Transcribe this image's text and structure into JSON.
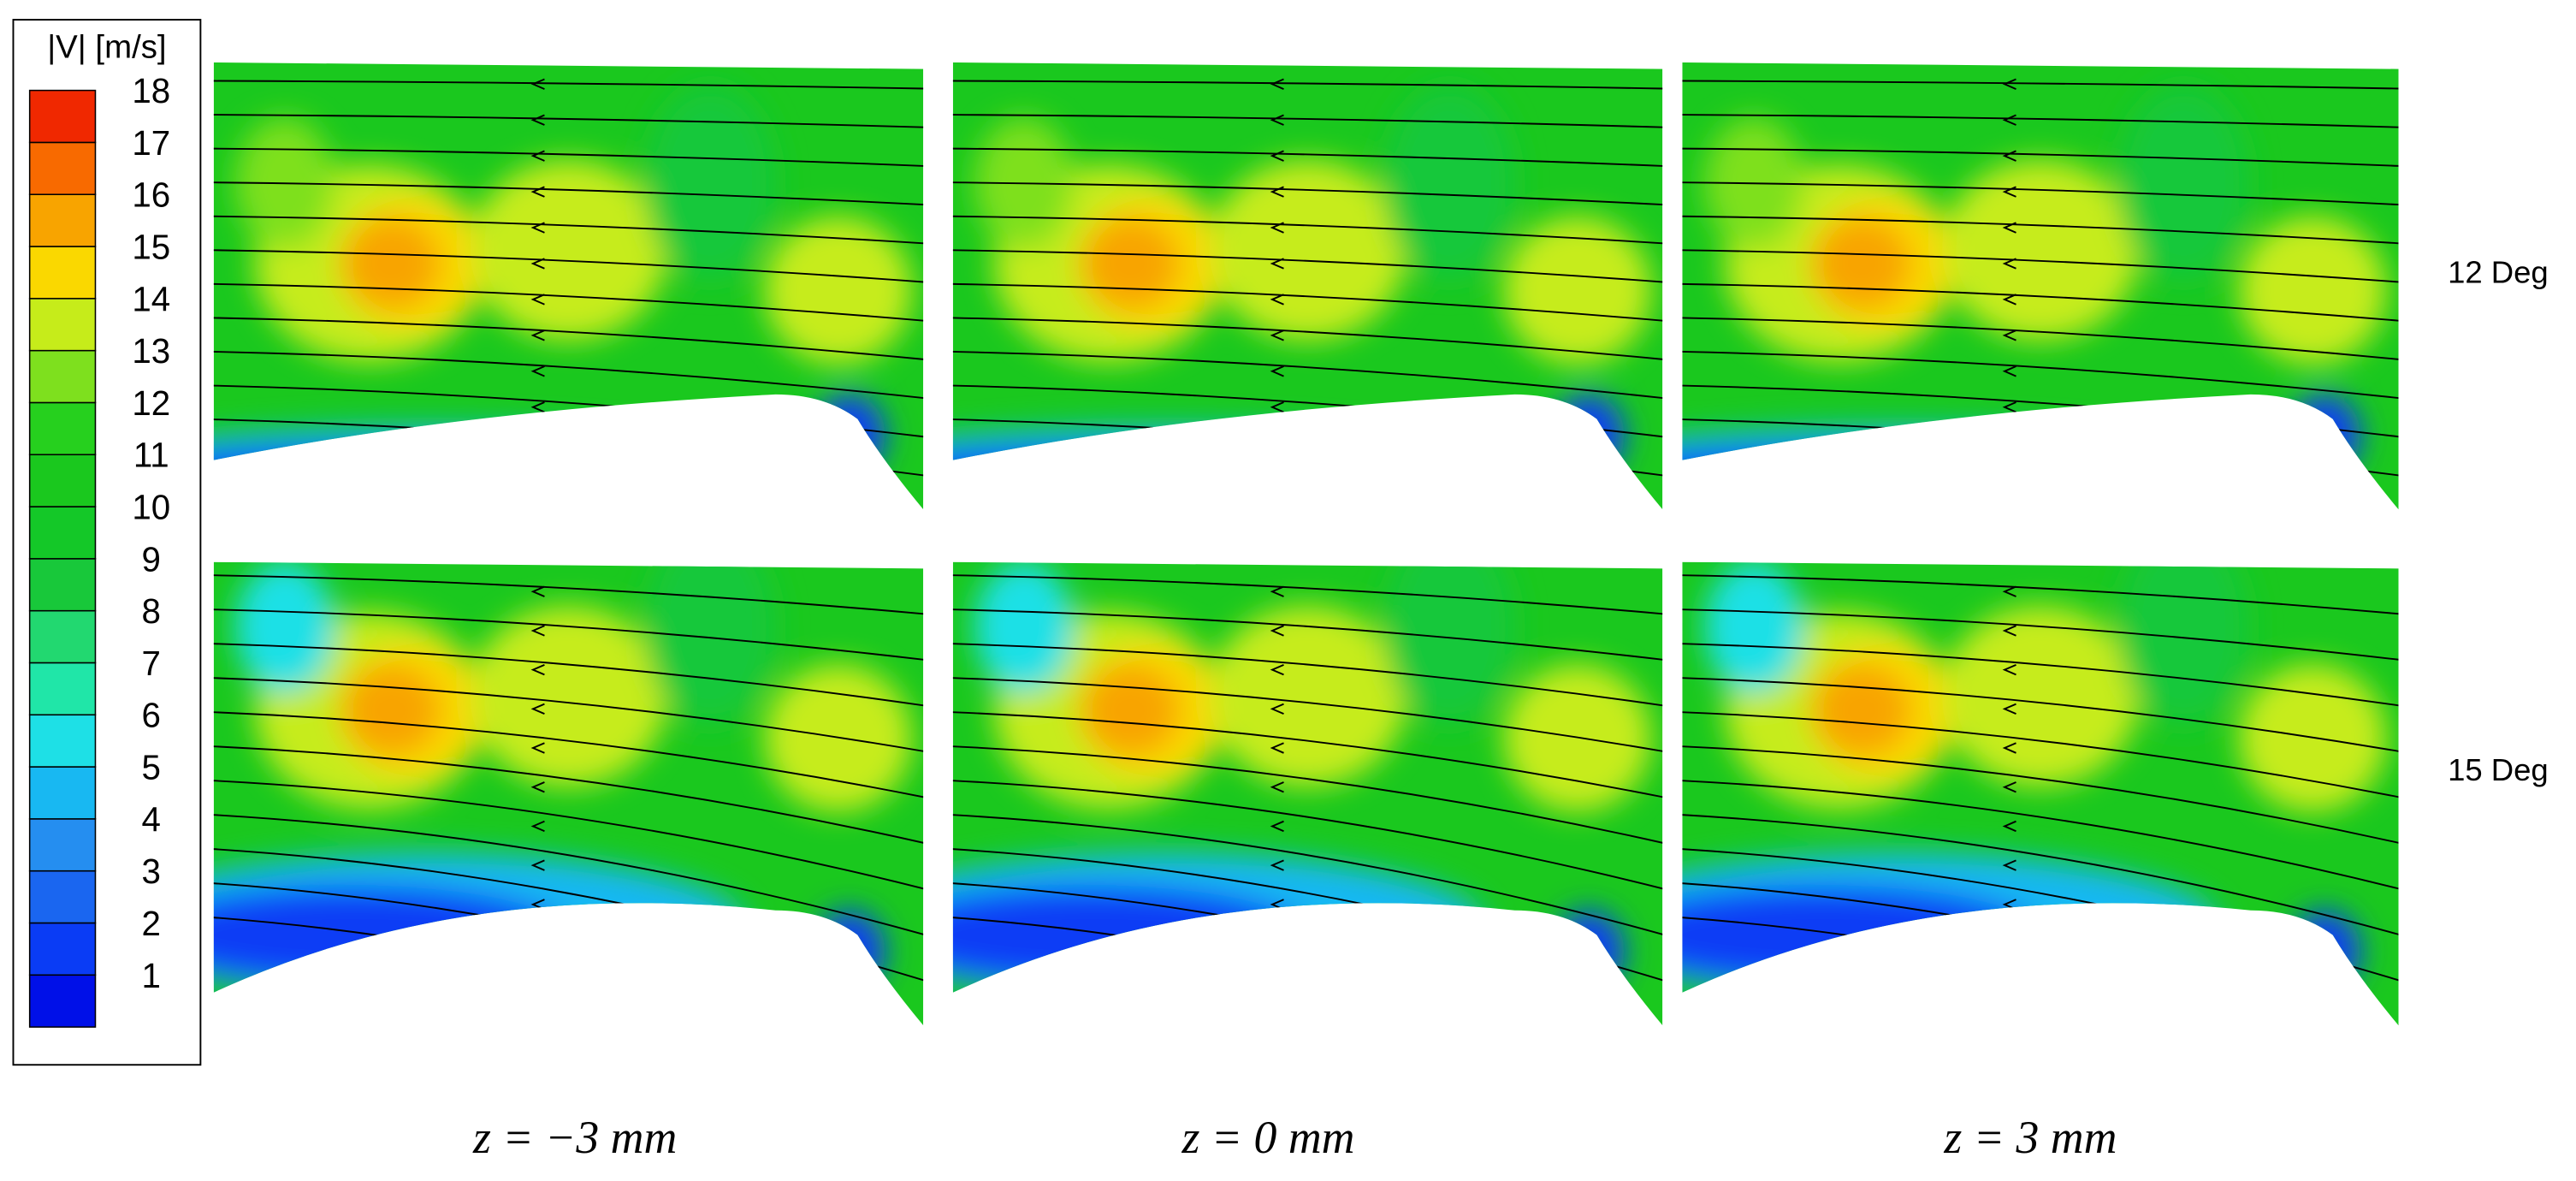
{
  "colorbar": {
    "title": "|V| [m/s]",
    "ticks": [
      1,
      2,
      3,
      4,
      5,
      6,
      7,
      8,
      9,
      10,
      11,
      12,
      13,
      14,
      15,
      16,
      17,
      18
    ],
    "colors": [
      "#0010e8",
      "#0a3cf5",
      "#1a66f0",
      "#258ef0",
      "#18b8f2",
      "#1ee0e6",
      "#20e6a8",
      "#22d870",
      "#18c83a",
      "#14c828",
      "#1ac81e",
      "#26d01e",
      "#7ee01e",
      "#c6ec1a",
      "#fad800",
      "#f8a400",
      "#f86a00",
      "#f02800"
    ]
  },
  "rows": [
    "12 Deg",
    "15 Deg"
  ],
  "columns": [
    "z = −3 mm",
    "z = 0 mm",
    "z = 3 mm"
  ]
}
